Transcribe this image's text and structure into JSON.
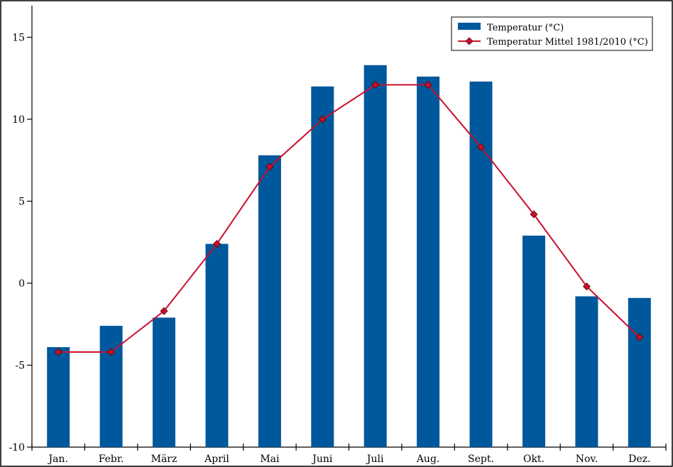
{
  "chart_data": {
    "type": "bar",
    "categories": [
      "Jan.",
      "Febr.",
      "März",
      "April",
      "Mai",
      "Juni",
      "Juli",
      "Aug.",
      "Sept.",
      "Okt.",
      "Nov.",
      "Dez."
    ],
    "series": [
      {
        "name": "Temperatur (°C)",
        "kind": "bar",
        "color": "#00589c",
        "values": [
          -3.9,
          -2.6,
          -2.1,
          2.4,
          7.8,
          12.0,
          13.3,
          12.6,
          12.3,
          2.9,
          -0.8,
          -0.9
        ]
      },
      {
        "name": "Temperatur Mittel 1981/2010 (°C)",
        "kind": "line",
        "color": "#c8102e",
        "values": [
          -4.2,
          -4.2,
          -1.7,
          2.4,
          7.1,
          10.0,
          12.1,
          12.1,
          8.3,
          4.2,
          -0.2,
          -3.3
        ]
      }
    ],
    "yticks": [
      -10,
      -5,
      0,
      5,
      10,
      15
    ],
    "ylim": [
      -10,
      16
    ],
    "title": "",
    "xlabel": "",
    "ylabel": "",
    "grid": false,
    "legend_position": "top-right"
  }
}
